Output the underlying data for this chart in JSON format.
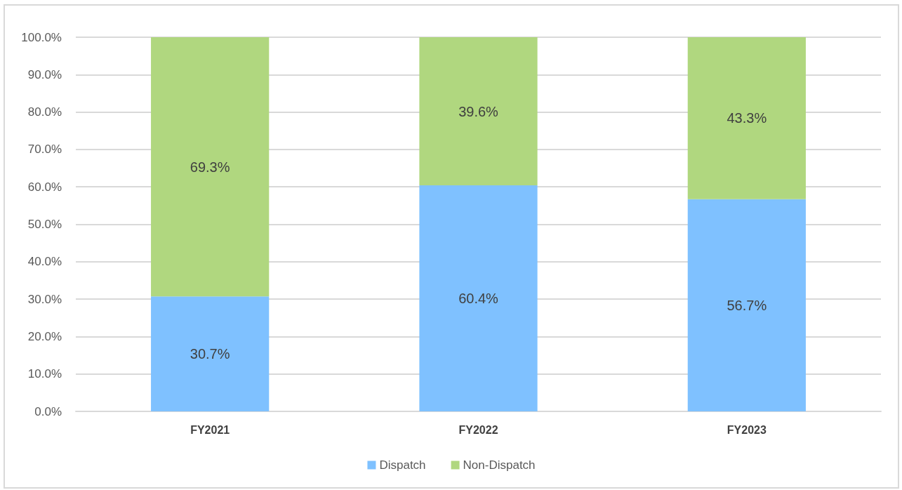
{
  "chart_data": {
    "type": "bar",
    "stacked": true,
    "categories": [
      "FY2021",
      "FY2022",
      "FY2023"
    ],
    "series": [
      {
        "name": "Dispatch",
        "color": "#7fc1ff",
        "values": [
          30.7,
          60.4,
          56.7
        ],
        "value_labels": [
          "30.7%",
          "60.4%",
          "56.7%"
        ]
      },
      {
        "name": "Non-Dispatch",
        "color": "#b0d77f",
        "values": [
          69.3,
          39.6,
          43.3
        ],
        "value_labels": [
          "69.3%",
          "39.6%",
          "43.3%"
        ]
      }
    ],
    "ylim": [
      0,
      100
    ],
    "yticks": [
      {
        "value": 0,
        "label": "0.0%"
      },
      {
        "value": 10,
        "label": "10.0%"
      },
      {
        "value": 20,
        "label": "20.0%"
      },
      {
        "value": 30,
        "label": "30.0%"
      },
      {
        "value": 40,
        "label": "40.0%"
      },
      {
        "value": 50,
        "label": "50.0%"
      },
      {
        "value": 60,
        "label": "60.0%"
      },
      {
        "value": 70,
        "label": "70.0%"
      },
      {
        "value": 80,
        "label": "80.0%"
      },
      {
        "value": 90,
        "label": "90.0%"
      },
      {
        "value": 100,
        "label": "100.0%"
      }
    ],
    "grid": "y",
    "legend": "bottom"
  }
}
